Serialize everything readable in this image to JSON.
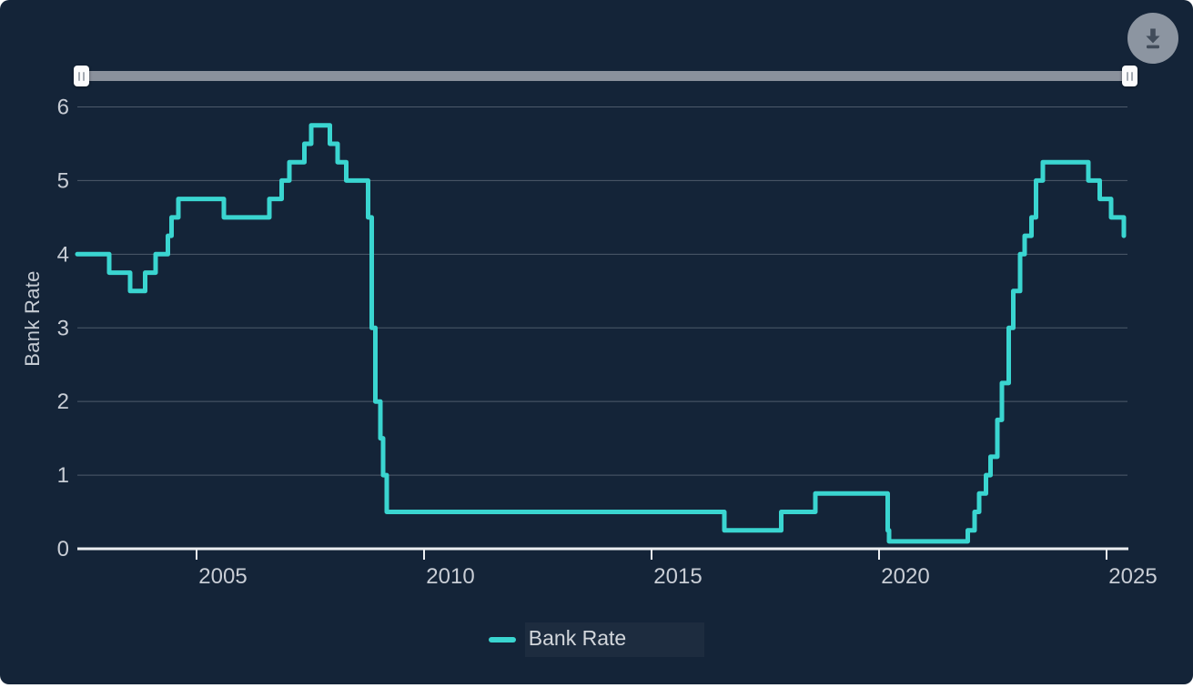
{
  "panel": {
    "background": "#142438"
  },
  "range_slider": {
    "track_color": "#8A919C",
    "handle_color": "#FBFBFC",
    "state": "full-range-selected"
  },
  "toolbar": {
    "download": {
      "icon": "download-icon"
    }
  },
  "chart_data": {
    "type": "line",
    "line_style": "step-after",
    "title": "",
    "xlabel": "",
    "ylabel": "Bank Rate",
    "xlim": [
      2002.38,
      2025.45
    ],
    "ylim": [
      0,
      6
    ],
    "x_ticks": [
      2005,
      2010,
      2015,
      2020,
      2025
    ],
    "y_ticks": [
      0,
      1,
      2,
      3,
      4,
      5,
      6
    ],
    "grid": "horizontal",
    "grid_color": "#4D5A6B",
    "axis_color": "#ECEEF1",
    "label_color": "#C8CDD5",
    "legend_position": "bottom-center",
    "legend": [
      {
        "label": "Bank Rate",
        "color": "#3AD5D0"
      }
    ],
    "series": [
      {
        "name": "Bank Rate",
        "color": "#3AD5D0",
        "points": [
          [
            2002.38,
            4.0
          ],
          [
            2003.08,
            3.75
          ],
          [
            2003.54,
            3.5
          ],
          [
            2003.87,
            3.75
          ],
          [
            2004.1,
            4.0
          ],
          [
            2004.37,
            4.25
          ],
          [
            2004.45,
            4.5
          ],
          [
            2004.6,
            4.75
          ],
          [
            2005.6,
            4.5
          ],
          [
            2006.6,
            4.75
          ],
          [
            2006.87,
            5.0
          ],
          [
            2007.04,
            5.25
          ],
          [
            2007.37,
            5.5
          ],
          [
            2007.52,
            5.75
          ],
          [
            2007.93,
            5.5
          ],
          [
            2008.1,
            5.25
          ],
          [
            2008.29,
            5.0
          ],
          [
            2008.77,
            4.5
          ],
          [
            2008.85,
            3.0
          ],
          [
            2008.93,
            2.0
          ],
          [
            2009.04,
            1.5
          ],
          [
            2009.1,
            1.0
          ],
          [
            2009.18,
            0.5
          ],
          [
            2016.6,
            0.25
          ],
          [
            2017.85,
            0.5
          ],
          [
            2018.6,
            0.75
          ],
          [
            2020.19,
            0.25
          ],
          [
            2020.22,
            0.1
          ],
          [
            2021.95,
            0.25
          ],
          [
            2022.1,
            0.5
          ],
          [
            2022.2,
            0.75
          ],
          [
            2022.35,
            1.0
          ],
          [
            2022.45,
            1.25
          ],
          [
            2022.6,
            1.75
          ],
          [
            2022.7,
            2.25
          ],
          [
            2022.85,
            3.0
          ],
          [
            2022.95,
            3.5
          ],
          [
            2023.1,
            4.0
          ],
          [
            2023.2,
            4.25
          ],
          [
            2023.35,
            4.5
          ],
          [
            2023.45,
            5.0
          ],
          [
            2023.6,
            5.25
          ],
          [
            2024.6,
            5.0
          ],
          [
            2024.85,
            4.75
          ],
          [
            2025.1,
            4.5
          ],
          [
            2025.38,
            4.25
          ]
        ]
      }
    ]
  }
}
